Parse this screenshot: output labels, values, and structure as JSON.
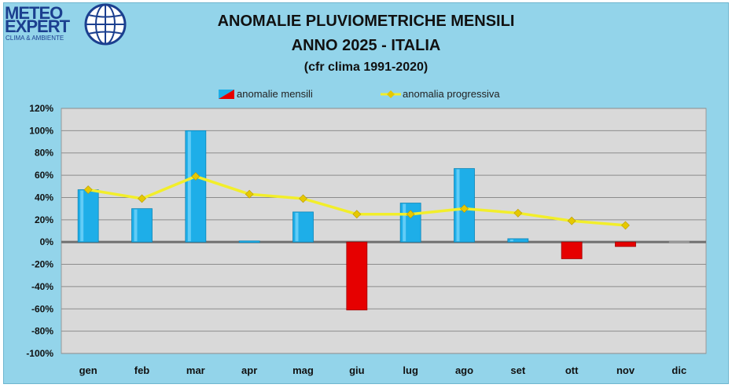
{
  "logo": {
    "line1": "METEO",
    "line2": "EXPERT",
    "tagline": "CLIMA & AMBIENTE"
  },
  "chart_data": {
    "type": "bar",
    "title": "ANOMALIE PLUVIOMETRICHE MENSILI",
    "subtitle": "ANNO 2025 - ITALIA",
    "note": "(cfr clima 1991-2020)",
    "categories": [
      "gen",
      "feb",
      "mar",
      "apr",
      "mag",
      "giu",
      "lug",
      "ago",
      "set",
      "ott",
      "nov",
      "dic"
    ],
    "series": [
      {
        "name": "anomalie mensili",
        "kind": "bar",
        "values": [
          47,
          30,
          100,
          1,
          27,
          -61,
          35,
          66,
          3,
          -15,
          -4,
          null
        ]
      },
      {
        "name": "anomalia progressiva",
        "kind": "line",
        "values": [
          47,
          39,
          59,
          43,
          39,
          25,
          25,
          30,
          26,
          19,
          15,
          null
        ]
      }
    ],
    "ylim": [
      -100,
      120
    ],
    "yticks": [
      "-100%",
      "-80%",
      "-60%",
      "-40%",
      "-20%",
      "0%",
      "20%",
      "40%",
      "60%",
      "80%",
      "100%",
      "120%"
    ],
    "grid": true,
    "legend_position": "top",
    "colors": {
      "positive": "#1eaee8",
      "negative": "#e60000",
      "line": "#f2ee2a",
      "marker": "#e6c800",
      "plot_bg": "#d9d9d9",
      "frame_bg": "#93d4ea"
    }
  }
}
